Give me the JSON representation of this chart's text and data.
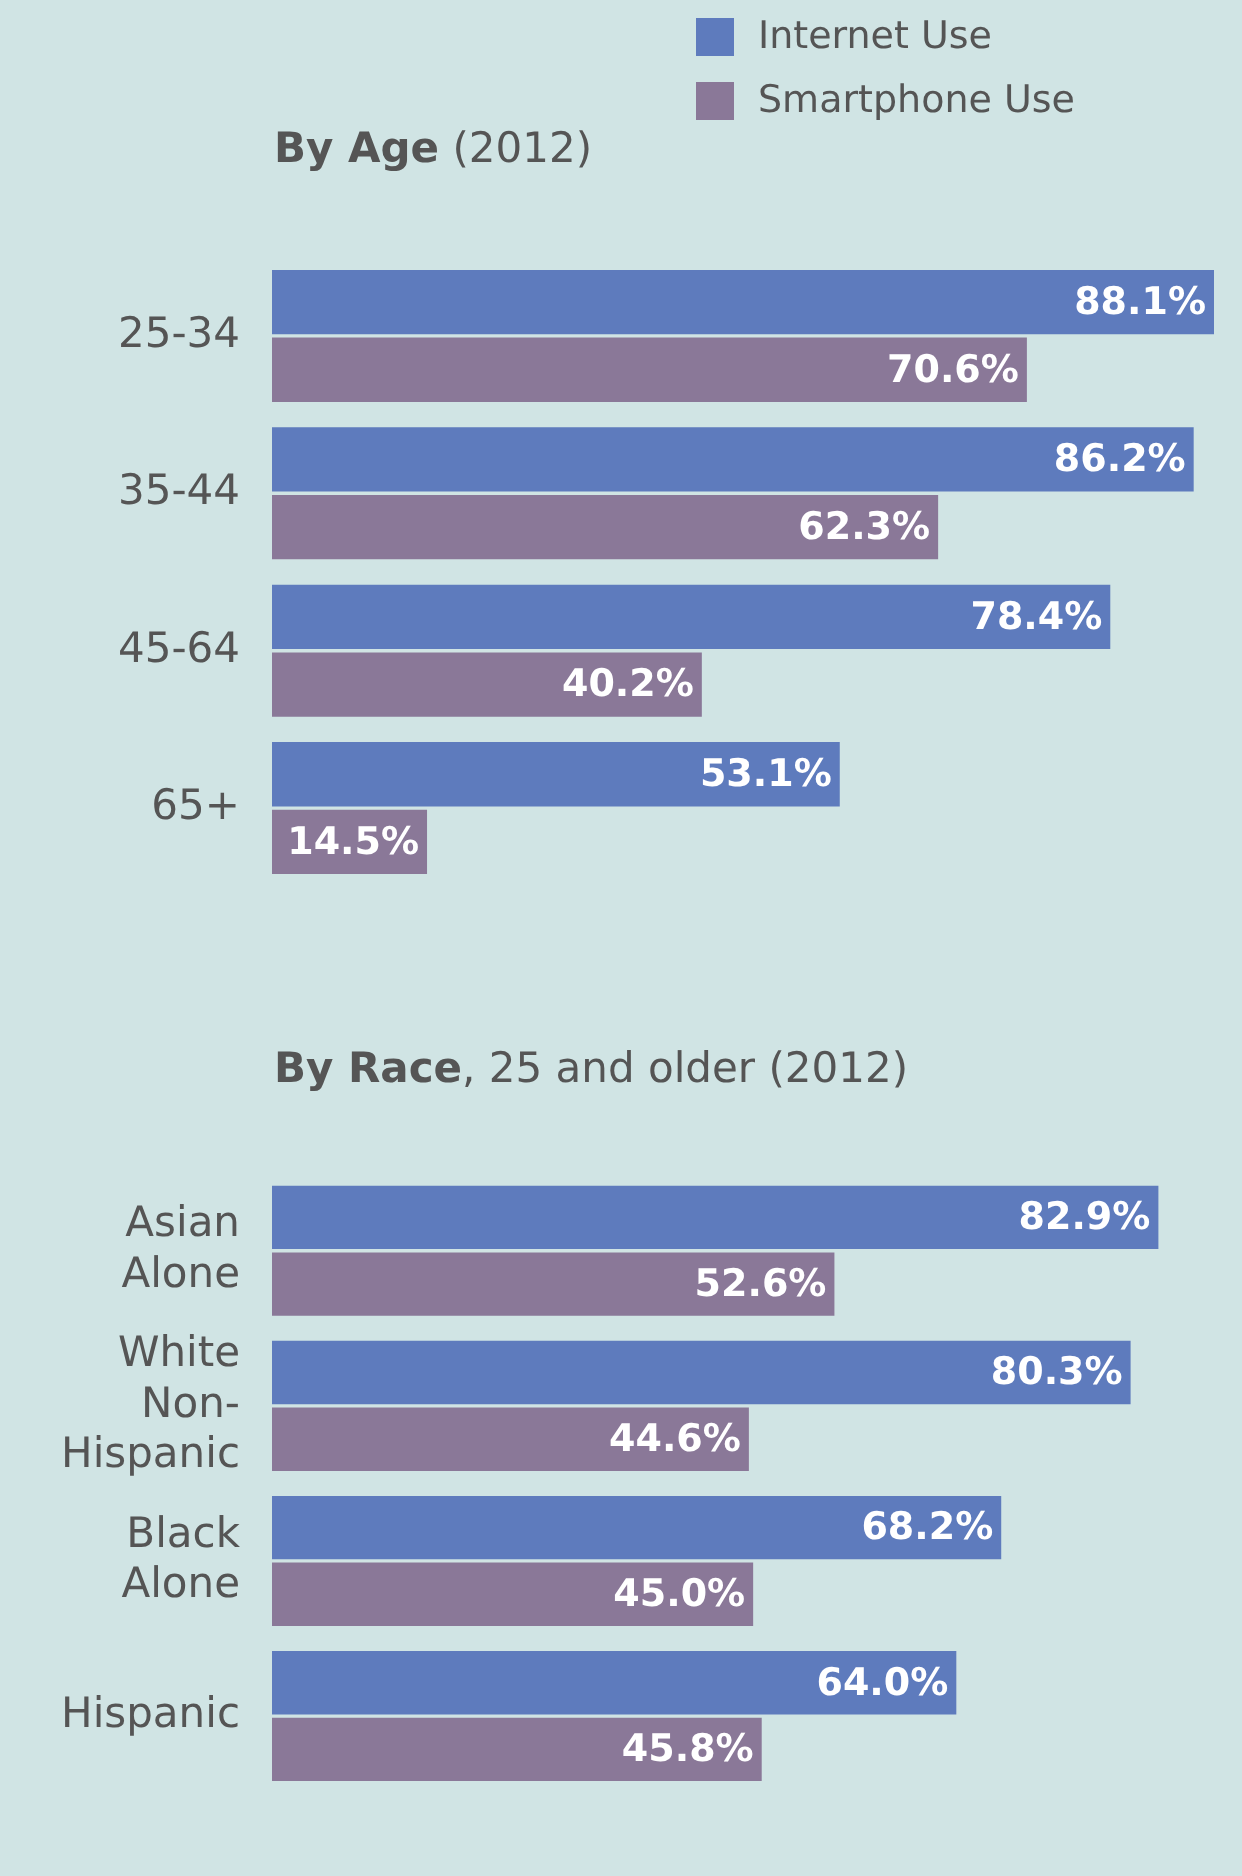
{
  "chart_data": [
    {
      "type": "bar",
      "orientation": "horizontal",
      "title": "By Age (2012)",
      "categories": [
        "25-34",
        "35-44",
        "45-64",
        "65+"
      ],
      "series": [
        {
          "name": "Internet Use",
          "color": "#5e7bbd",
          "values": [
            88.1,
            86.2,
            78.4,
            53.1
          ],
          "value_labels": [
            "88.1%",
            "86.2%",
            "78.4%",
            "53.1%"
          ]
        },
        {
          "name": "Smartphone Use",
          "color": "#8a7898",
          "values": [
            70.6,
            62.3,
            40.2,
            14.5
          ],
          "value_labels": [
            "70.6%",
            "62.3%",
            "40.2%",
            "14.5%"
          ]
        }
      ],
      "legend": "top right",
      "tick_labels": "y"
    },
    {
      "type": "bar",
      "orientation": "horizontal",
      "title": "By Race, 25 and older (2012)",
      "categories": [
        "Asian Alone",
        "White Non-Hispanic",
        "Black Alone",
        "Hispanic"
      ],
      "series": [
        {
          "color": "#5e7bbd",
          "values": [
            82.9,
            80.3,
            68.2,
            64.0
          ],
          "value_labels": [
            "82.9%",
            "80.3%",
            "68.2%",
            "64.0%"
          ]
        },
        {
          "color": "#8a7898",
          "values": [
            52.6,
            44.6,
            45.0,
            45.8
          ],
          "value_labels": [
            "52.6%",
            "44.6%",
            "45.0%",
            "45.8%"
          ]
        }
      ],
      "tick_labels": "y"
    }
  ]
}
